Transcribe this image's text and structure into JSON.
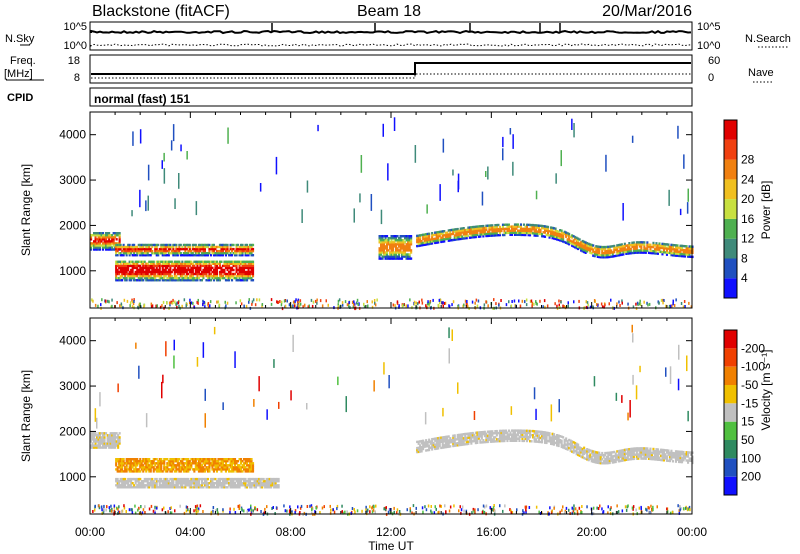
{
  "header": {
    "station": "Blackstone (fitACF)",
    "beam": "Beam 18",
    "date": "20/Mar/2016"
  },
  "summary": {
    "nsky_label": "N.Sky",
    "nsearch_label": "N.Search",
    "noise_ticks": [
      "10^5",
      "10^0"
    ],
    "freq_label": "Freq.",
    "freq_unit": "[MHz]",
    "freq_ticks": [
      "18",
      "8"
    ],
    "nave_label": "Nave",
    "nave_ticks": [
      "60",
      "0"
    ],
    "cpid_label": "CPID",
    "cpid_text": "normal (fast) 151"
  },
  "colors": {
    "power": [
      "#1010ff",
      "#2050c0",
      "#3f8a7a",
      "#4fb050",
      "#c8e040",
      "#f0c020",
      "#f08010",
      "#f04010",
      "#e00000"
    ],
    "velocity": [
      "#e00000",
      "#f04000",
      "#f08000",
      "#f0c000",
      "#c0c0c0",
      "#50c040",
      "#2f8a60",
      "#2050c0",
      "#1010ff"
    ]
  },
  "chart_data": [
    {
      "type": "heatmap",
      "name": "power",
      "ylabel": "Slant Range [km]",
      "y_ticks": [
        "1000",
        "2000",
        "3000",
        "4000"
      ],
      "ylim": [
        180,
        4500
      ],
      "xlim": [
        0,
        24
      ],
      "colorbar_label": "Power [dB]",
      "colorbar_ticks": [
        "4",
        "8",
        "12",
        "16",
        "20",
        "24",
        "28"
      ],
      "features": [
        {
          "t0": 0,
          "t1": 1.2,
          "r_center": 1650,
          "r_width": 400
        },
        {
          "t0": 1.0,
          "t1": 6.5,
          "r_center": 1000,
          "r_width": 450
        },
        {
          "t0": 1.0,
          "t1": 6.5,
          "r_center": 1450,
          "r_width": 250
        },
        {
          "t0": 11.5,
          "t1": 12.8,
          "r_center": 1500,
          "r_width": 500
        },
        {
          "t0": 13.0,
          "t1": 24.0,
          "r_center": 1800,
          "r_width": 250
        }
      ]
    },
    {
      "type": "heatmap",
      "name": "velocity",
      "ylabel": "Slant Range [km]",
      "y_ticks": [
        "1000",
        "2000",
        "3000",
        "4000"
      ],
      "ylim": [
        180,
        4500
      ],
      "xlim": [
        0,
        24
      ],
      "xlabel": "Time UT",
      "x_ticks": [
        "00:00",
        "04:00",
        "08:00",
        "12:00",
        "16:00",
        "20:00",
        "00:00"
      ],
      "colorbar_label": "Velocity [m s⁻¹]",
      "colorbar_ticks": [
        "200",
        "100",
        "50",
        "15",
        "-15",
        "-50",
        "-100",
        "-200"
      ],
      "features": [
        {
          "t0": 0,
          "t1": 1.2,
          "r_center": 1800,
          "r_width": 350,
          "velocity": 0
        },
        {
          "t0": 1.0,
          "t1": 6.5,
          "r_center": 1250,
          "r_width": 300,
          "velocity": -50
        },
        {
          "t0": 1.0,
          "t1": 7.5,
          "r_center": 850,
          "r_width": 200,
          "velocity": 0
        },
        {
          "t0": 13.0,
          "t1": 24.0,
          "r_center": 1800,
          "r_width": 250,
          "velocity": 0
        }
      ]
    }
  ]
}
